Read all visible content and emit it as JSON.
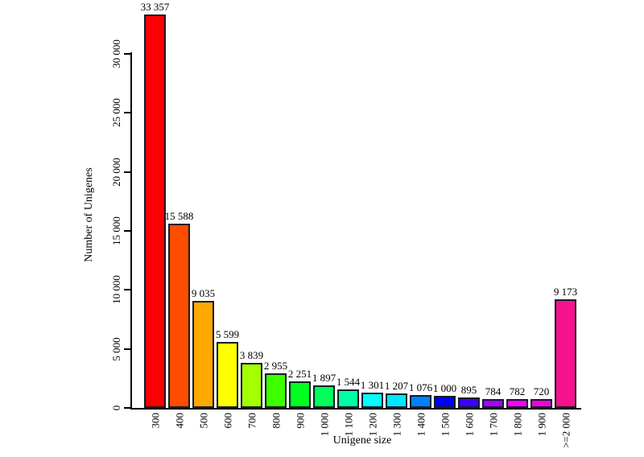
{
  "figure": {
    "background_color": "#FFFFFF",
    "axis_color": "#000000",
    "text_color": "#000000",
    "bar_border_color": "#131D26"
  },
  "chart_data": {
    "type": "bar",
    "title": "",
    "xlabel": "Unigene size",
    "ylabel": "Number of Unigenes",
    "categories": [
      "300",
      "400",
      "500",
      "600",
      "700",
      "800",
      "900",
      "1 000",
      "1 100",
      "1 200",
      "1 300",
      "1 400",
      "1 500",
      "1 600",
      "1 700",
      "1 800",
      "1 900",
      ">=2 000"
    ],
    "values": [
      33357,
      15588,
      9035,
      5599,
      3839,
      2955,
      2251,
      1897,
      1544,
      1301,
      1207,
      1076,
      1000,
      895,
      784,
      782,
      720,
      9173
    ],
    "value_labels": [
      "33 357",
      "15 588",
      "9 035",
      "5 599",
      "3 839",
      "2 955",
      "2 251",
      "1 897",
      "1 544",
      "1 301",
      "1 207",
      "1 076",
      "1 000",
      "895",
      "784",
      "782",
      "720",
      "9 173"
    ],
    "bar_colors": [
      "#FF0000",
      "#FF4D00",
      "#FFA800",
      "#FFFF00",
      "#A4FF00",
      "#3DFF00",
      "#00FF1E",
      "#00FF5A",
      "#00FFA0",
      "#00FFFF",
      "#00E6FF",
      "#0080FF",
      "#0000FF",
      "#3C00FF",
      "#A600FF",
      "#FF00FF",
      "#F200DC",
      "#F5128C"
    ],
    "ylim": [
      0,
      30000
    ],
    "yticks": [
      0,
      5000,
      10000,
      15000,
      20000,
      25000,
      30000
    ],
    "ytick_labels": [
      "0",
      "5 000",
      "10 000",
      "15 000",
      "20 000",
      "25 000",
      "30 000"
    ],
    "grid": false,
    "legend_position": "none",
    "x_tick_label_rotation_deg": 90,
    "y_tick_label_rotation_deg": 90
  }
}
